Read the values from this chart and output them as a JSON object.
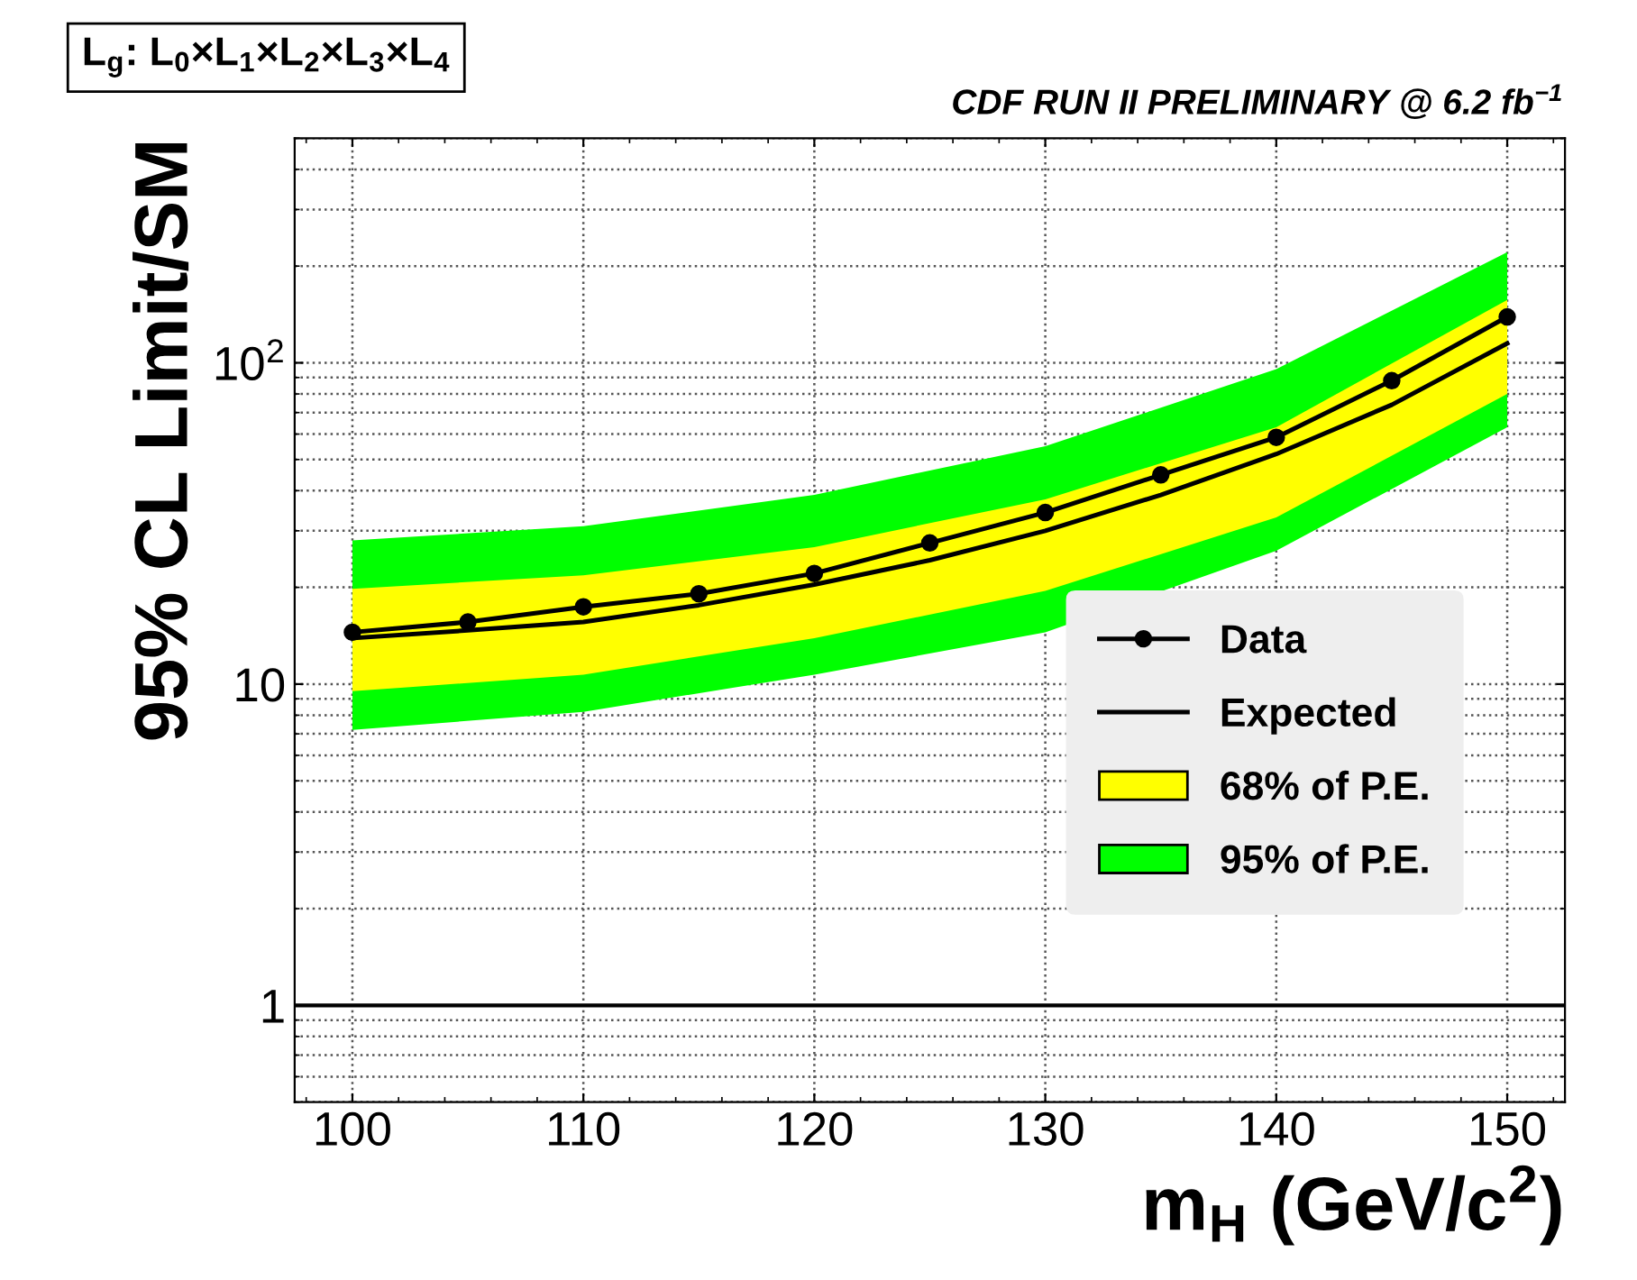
{
  "chart_data": {
    "type": "line",
    "title": "L$_{g}$: L$_{0}$×L$_{1}$×L$_{2}$×L$_{3}$×L$_{4}$",
    "annotations": [
      "CDF RUN II PRELIMINARY @ 6.2 fb$^{−1}$"
    ],
    "xlabel": "m$_{H}$ (GeV/c$^{2}$)",
    "ylabel": "95% CL Limit/SM",
    "log": "y",
    "xlim": [
      97.5,
      152.5
    ],
    "xticks": [
      100,
      110,
      120,
      130,
      140,
      150
    ],
    "ylim": [
      0.5,
      500
    ],
    "yticks": [
      1,
      10,
      {
        "value": 100,
        "label": "10$^{2}$"
      }
    ],
    "grid": true,
    "legend": "bottom right",
    "ref_lines": [
      {
        "axis": "y",
        "value": 1,
        "color": "#000000",
        "line_style": "solid"
      }
    ],
    "series": [
      {
        "name": "95% of P.E.",
        "type": "line",
        "color": "#00ff00",
        "x": [
          100,
          110,
          120,
          130,
          140,
          150
        ],
        "values": [
          null,
          null,
          null,
          null,
          null,
          null
        ],
        "lower": [
          7.2,
          8.2,
          10.7,
          14.5,
          26,
          63
        ],
        "upper": [
          28,
          31,
          38.8,
          55,
          95.5,
          221
        ]
      },
      {
        "name": "68% of P.E.",
        "type": "line",
        "color": "#ffff00",
        "x": [
          100,
          110,
          120,
          130,
          140,
          150
        ],
        "values": [
          null,
          null,
          null,
          null,
          null,
          null
        ],
        "lower": [
          9.5,
          10.7,
          13.9,
          19.5,
          33,
          80
        ],
        "upper": [
          19.8,
          21.8,
          26.7,
          37.6,
          63,
          157
        ]
      },
      {
        "name": "Expected",
        "type": "line",
        "color": "#000000",
        "marker": "none",
        "x": [
          100,
          105,
          110,
          115,
          120,
          125,
          130,
          135,
          140,
          145,
          150
        ],
        "values": [
          13.9,
          14.7,
          15.6,
          17.6,
          20.4,
          24.3,
          30,
          38.8,
          52,
          74,
          115
        ]
      },
      {
        "name": "Data",
        "type": "line",
        "color": "#000000",
        "marker": "circle",
        "x": [
          100,
          105,
          110,
          115,
          120,
          125,
          130,
          135,
          140,
          145,
          150
        ],
        "values": [
          14.5,
          15.6,
          17.4,
          19.1,
          22.1,
          27.5,
          34.2,
          44.8,
          58.6,
          88,
          139
        ]
      }
    ]
  }
}
